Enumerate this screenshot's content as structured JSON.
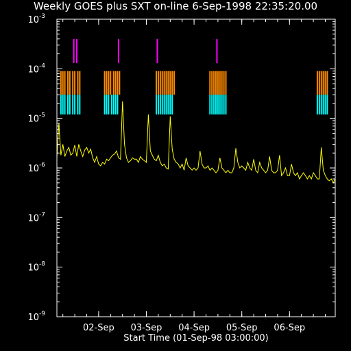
{
  "header": {
    "title": "Weekly GOES plus SXT on-line  6-Sep-1998 22:35:20.00"
  },
  "colors": {
    "background": "#000000",
    "axes": "#ffffff",
    "goes_flux": "#ffff00",
    "magenta_markers": "#ff00ff",
    "orange_markers": "#ff8c00",
    "cyan_markers": "#00ffff"
  },
  "chart_data": {
    "type": "line",
    "title": "Weekly GOES plus SXT on-line  6-Sep-1998 22:35:20.00",
    "xlabel": "Start Time (01-Sep-98 03:00:00)",
    "ylabel": "",
    "y_scale": "log",
    "ylim": [
      1e-09,
      0.001
    ],
    "xlim_hours": [
      0,
      140
    ],
    "x_tick_labels": [
      "02-Sep",
      "03-Sep",
      "04-Sep",
      "05-Sep",
      "06-Sep"
    ],
    "x_tick_hours": [
      21,
      45,
      69,
      93,
      117
    ],
    "y_tick_labels": [
      {
        "mantissa": "10",
        "exponent": "-3"
      },
      {
        "mantissa": "10",
        "exponent": "-4"
      },
      {
        "mantissa": "10",
        "exponent": "-5"
      },
      {
        "mantissa": "10",
        "exponent": "-6"
      },
      {
        "mantissa": "10",
        "exponent": "-7"
      },
      {
        "mantissa": "10",
        "exponent": "-8"
      },
      {
        "mantissa": "10",
        "exponent": "-9"
      }
    ],
    "y_tick_values": [
      0.001,
      0.0001,
      1e-05,
      1e-06,
      1e-07,
      1e-08,
      1e-09
    ],
    "series": [
      {
        "x_hours": [
          0,
          1,
          2,
          3,
          4,
          5,
          6,
          7,
          8,
          9,
          10,
          11,
          12,
          13,
          14,
          15,
          16,
          17,
          18,
          19,
          20,
          21,
          22,
          23,
          24,
          25,
          26,
          27,
          28,
          29,
          30,
          31,
          32,
          33,
          34,
          35,
          36,
          37,
          38,
          39,
          40,
          41,
          42,
          43,
          44,
          45,
          46,
          47,
          48,
          49,
          50,
          51,
          52,
          53,
          54,
          55,
          56,
          57,
          58,
          59,
          60,
          61,
          62,
          63,
          64,
          65,
          66,
          67,
          68,
          69,
          70,
          71,
          72,
          73,
          74,
          75,
          76,
          77,
          78,
          79,
          80,
          81,
          82,
          83,
          84,
          85,
          86,
          87,
          88,
          89,
          90,
          91,
          92,
          93,
          94,
          95,
          96,
          97,
          98,
          99,
          100,
          101,
          102,
          103,
          104,
          105,
          106,
          107,
          108,
          109,
          110,
          111,
          112,
          113,
          114,
          115,
          116,
          117,
          118,
          119,
          120,
          121,
          122,
          123,
          124,
          125,
          126,
          127,
          128,
          129,
          130,
          131,
          132,
          133,
          134,
          135,
          136,
          137,
          138,
          139,
          140
        ],
        "values": [
          1.6e-06,
          8e-06,
          1.8e-06,
          3e-06,
          1.7e-06,
          2.2e-06,
          2.6e-06,
          1.8e-06,
          2e-06,
          2.9e-06,
          1.7e-06,
          3e-06,
          2.2e-06,
          1.7e-06,
          2.3e-06,
          2.6e-06,
          2e-06,
          2.4e-06,
          1.6e-06,
          1.3e-06,
          1.7e-06,
          1.2e-06,
          1.1e-06,
          1.3e-06,
          1.2e-06,
          1.5e-06,
          1.4e-06,
          1.6e-06,
          1.8e-06,
          1.9e-06,
          2.2e-06,
          1.6e-06,
          1.5e-06,
          2.2e-05,
          3e-06,
          1.6e-06,
          1.3e-06,
          1.4e-06,
          1.6e-06,
          1.5e-06,
          1.5e-06,
          1.3e-06,
          1.7e-06,
          1.5e-06,
          1.4e-06,
          1.3e-06,
          1.2e-05,
          2.2e-06,
          1.8e-06,
          1.5e-06,
          1.4e-06,
          1.8e-06,
          1.3e-06,
          1.1e-06,
          1.2e-06,
          1e-06,
          9.5e-07,
          1.1e-05,
          2.4e-06,
          1.5e-06,
          1.3e-06,
          1.2e-06,
          1e-06,
          1.2e-06,
          9e-07,
          1.6e-06,
          1.1e-06,
          1e-06,
          9e-07,
          1e-06,
          9e-07,
          1e-06,
          2.2e-06,
          1.2e-06,
          1e-06,
          1e-06,
          1.1e-06,
          9e-07,
          1e-06,
          9e-07,
          8e-07,
          9e-07,
          1.6e-06,
          1e-06,
          9e-07,
          8e-07,
          9e-07,
          8e-07,
          8e-07,
          1e-06,
          2.5e-06,
          1.3e-06,
          1e-06,
          1.1e-06,
          1e-06,
          9e-07,
          1.3e-06,
          1e-06,
          9e-07,
          1.5e-06,
          9e-07,
          8e-07,
          1.3e-06,
          1e-06,
          9e-07,
          8e-07,
          9e-07,
          1.7e-06,
          9e-07,
          8e-07,
          8e-07,
          9e-07,
          1.8e-06,
          7e-07,
          8e-07,
          1e-06,
          7e-07,
          7e-07,
          1.2e-06,
          8e-07,
          7e-07,
          8e-07,
          6e-07,
          7e-07,
          8e-07,
          7e-07,
          6e-07,
          7e-07,
          6e-07,
          8e-07,
          7e-07,
          6e-07,
          6e-07,
          2.6e-06,
          9e-07,
          7e-07,
          6e-07,
          5.5e-07,
          6e-07,
          5e-07,
          6e-07
        ]
      }
    ],
    "markers": {
      "magenta": {
        "y_range": [
          0.00013,
          0.0004
        ],
        "x_hours": [
          8.5,
          10.0,
          31.0,
          50.5,
          80.5
        ]
      },
      "orange": {
        "y_range": [
          3e-05,
          9e-05
        ],
        "x_hours": [
          2.0,
          3.0,
          4.0,
          5.5,
          6.5,
          8.0,
          9.0,
          10.5,
          11.5,
          24.0,
          25.0,
          26.0,
          27.0,
          28.5,
          29.5,
          30.5,
          31.5,
          50.0,
          51.0,
          52.0,
          53.0,
          54.0,
          55.0,
          56.0,
          57.0,
          58.0,
          59.0,
          77.0,
          78.0,
          79.0,
          80.0,
          81.0,
          82.0,
          83.0,
          84.0,
          85.0,
          131.0,
          132.0,
          133.0,
          134.0,
          135.0,
          136.0
        ]
      },
      "cyan": {
        "y_range": [
          1.2e-05,
          3e-05
        ],
        "x_hours": [
          2.0,
          3.0,
          4.0,
          5.5,
          6.5,
          8.0,
          9.0,
          10.5,
          11.5,
          24.0,
          25.0,
          26.0,
          27.5,
          28.5,
          29.5,
          30.5,
          50.0,
          51.0,
          52.0,
          53.0,
          54.0,
          55.0,
          56.0,
          57.0,
          58.0,
          77.0,
          78.0,
          79.0,
          80.0,
          81.0,
          82.0,
          83.0,
          84.0,
          85.0,
          131.0,
          132.0,
          133.0,
          134.0,
          135.0,
          136.0
        ]
      }
    }
  }
}
